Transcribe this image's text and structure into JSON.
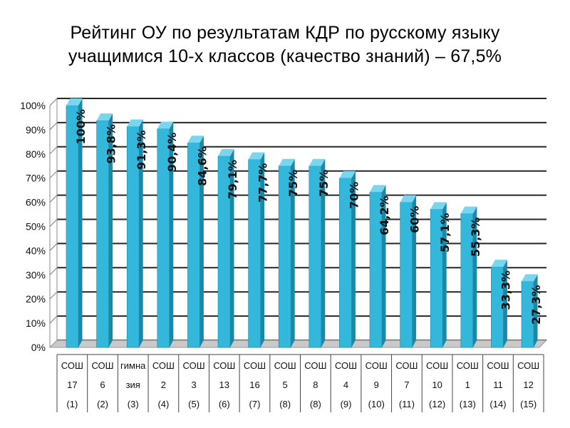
{
  "title_line1": "Рейтинг ОУ по результатам КДР по русскому языку",
  "title_line2": "учащимися 10-х классов (качество знаний) – 67,5%",
  "colors": {
    "bar_front": "#33b8dc",
    "bar_side": "#1b88a8",
    "bar_top": "#79d6ee",
    "floor": "#c9c9c9"
  },
  "chart_data": {
    "type": "bar",
    "title": "Рейтинг ОУ по результатам КДР по русскому языку учащимися 10-х классов (качество знаний) – 67,5%",
    "ylim": [
      0,
      100
    ],
    "yticks": [
      "0%",
      "10%",
      "20%",
      "30%",
      "40%",
      "50%",
      "60%",
      "70%",
      "80%",
      "90%",
      "100%"
    ],
    "grid": true,
    "categories": [
      [
        "СОШ",
        "17",
        "(1)"
      ],
      [
        "СОШ",
        "6",
        "(2)"
      ],
      [
        "гимна",
        "зия",
        "(3)"
      ],
      [
        "СОШ",
        "2",
        "(4)"
      ],
      [
        "СОШ",
        "3",
        "(5)"
      ],
      [
        "СОШ",
        "13",
        "(6)"
      ],
      [
        "СОШ",
        "16",
        "(7)"
      ],
      [
        "СОШ",
        "5",
        "(8)"
      ],
      [
        "СОШ",
        "8",
        "(8)"
      ],
      [
        "СОШ",
        "4",
        "(9)"
      ],
      [
        "СОШ",
        "9",
        "(10)"
      ],
      [
        "СОШ",
        "7",
        "(11)"
      ],
      [
        "СОШ",
        "10",
        "(12)"
      ],
      [
        "СОШ",
        "1",
        "(13)"
      ],
      [
        "СОШ",
        "11",
        "(14)"
      ],
      [
        "СОШ",
        "12",
        "(15)"
      ]
    ],
    "values": [
      100,
      93.8,
      91.3,
      90.4,
      84.6,
      79.1,
      77.7,
      75,
      75,
      70,
      64.2,
      60,
      57.1,
      55.3,
      33.3,
      27.3
    ],
    "labels": [
      "100%",
      "93,8%",
      "91,3%",
      "90,4%",
      "84,6%",
      "79,1%",
      "77,7%",
      "75%",
      "75%",
      "70%",
      "64,2%",
      "60%",
      "57,1%",
      "55,3%",
      "33,3%",
      "27,3%"
    ]
  }
}
